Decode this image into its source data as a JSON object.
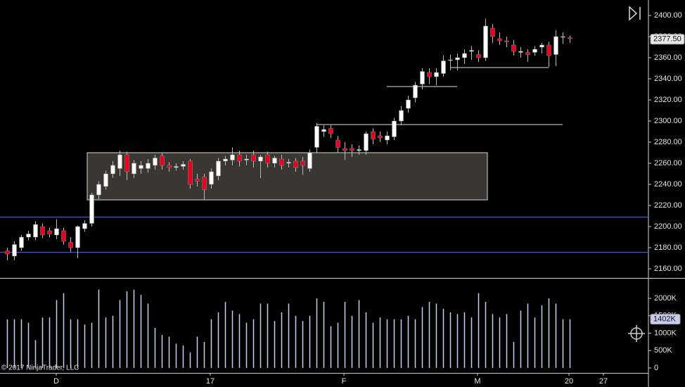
{
  "chart_data": [
    {
      "type": "candlestick",
      "xlim": [
        -1,
        91.2
      ],
      "ylim": [
        2151.33,
        2414.67
      ],
      "yticks": [
        {
          "value": 2160,
          "label": "2160.00"
        },
        {
          "value": 2180,
          "label": "2180.00"
        },
        {
          "value": 2200,
          "label": "2200.00"
        },
        {
          "value": 2220,
          "label": "2220.00"
        },
        {
          "value": 2240,
          "label": "2240.00"
        },
        {
          "value": 2260,
          "label": "2260.00"
        },
        {
          "value": 2280,
          "label": "2280.00"
        },
        {
          "value": 2300,
          "label": "2300.00"
        },
        {
          "value": 2320,
          "label": "2320.00"
        },
        {
          "value": 2340,
          "label": "2340.00"
        },
        {
          "value": 2360,
          "label": "2360.00"
        },
        {
          "value": 2380,
          "label": "2380.00"
        },
        {
          "value": 2400,
          "label": "2400.00"
        }
      ],
      "up_color": "#ffffff",
      "down_color": "#e8001c",
      "open": [
        2177,
        2172,
        2180,
        2190,
        2190,
        2200,
        2196,
        2192,
        2196,
        2185,
        2180,
        2198,
        2203,
        2230,
        2238,
        2250,
        2255,
        2268,
        2250,
        2255,
        2255,
        2258,
        2267,
        2258,
        2256,
        2257,
        2262,
        2245,
        2247,
        2240,
        2248,
        2262,
        2263,
        2268,
        2263,
        2268,
        2262,
        2268,
        2260,
        2264,
        2260,
        2262,
        2262,
        2255,
        2275,
        2290,
        2293,
        2282,
        2274,
        2274,
        2272,
        2272,
        2290,
        2286,
        2282,
        2285,
        2300,
        2312,
        2322,
        2335,
        2346,
        2342,
        2345,
        2358,
        2358,
        2360,
        2366,
        2363,
        2360,
        2388,
        2378,
        2376,
        2372,
        2365,
        2365,
        2365,
        2370,
        2372,
        2363,
        2380,
        2379
      ],
      "high": [
        2180,
        2186,
        2192,
        2196,
        2205,
        2203,
        2199,
        2207,
        2199,
        2190,
        2201,
        2206,
        2232,
        2243,
        2253,
        2262,
        2272,
        2271,
        2263,
        2262,
        2264,
        2268,
        2270,
        2261,
        2260,
        2262,
        2264,
        2250,
        2250,
        2255,
        2265,
        2267,
        2275,
        2272,
        2268,
        2272,
        2268,
        2271,
        2267,
        2268,
        2264,
        2265,
        2266,
        2273,
        2298,
        2296,
        2296,
        2286,
        2280,
        2278,
        2277,
        2290,
        2293,
        2290,
        2290,
        2303,
        2314,
        2324,
        2337,
        2350,
        2350,
        2350,
        2362,
        2363,
        2364,
        2368,
        2371,
        2367,
        2397,
        2392,
        2384,
        2380,
        2377,
        2370,
        2368,
        2371,
        2374,
        2375,
        2386,
        2384,
        2381
      ],
      "low": [
        2168,
        2168,
        2177,
        2187,
        2187,
        2189,
        2190,
        2188,
        2183,
        2176,
        2170,
        2195,
        2200,
        2226,
        2235,
        2246,
        2248,
        2244,
        2246,
        2250,
        2251,
        2254,
        2254,
        2252,
        2253,
        2254,
        2236,
        2238,
        2225,
        2236,
        2244,
        2258,
        2258,
        2257,
        2258,
        2256,
        2246,
        2256,
        2256,
        2254,
        2256,
        2252,
        2249,
        2252,
        2270,
        2285,
        2284,
        2270,
        2263,
        2266,
        2268,
        2268,
        2278,
        2280,
        2278,
        2282,
        2296,
        2308,
        2318,
        2330,
        2335,
        2334,
        2342,
        2348,
        2348,
        2354,
        2358,
        2356,
        2357,
        2374,
        2372,
        2370,
        2362,
        2360,
        2356,
        2362,
        2364,
        2351,
        2352,
        2373,
        2374
      ],
      "close": [
        2174,
        2183,
        2190,
        2193,
        2202,
        2192,
        2193,
        2198,
        2186,
        2180,
        2200,
        2203,
        2230,
        2240,
        2250,
        2258,
        2268,
        2252,
        2260,
        2258,
        2260,
        2265,
        2258,
        2256,
        2257,
        2259,
        2240,
        2243,
        2235,
        2252,
        2262,
        2264,
        2268,
        2262,
        2264,
        2262,
        2266,
        2260,
        2265,
        2258,
        2261,
        2256,
        2258,
        2270,
        2295,
        2292,
        2288,
        2275,
        2272,
        2272,
        2273,
        2288,
        2283,
        2284,
        2286,
        2300,
        2310,
        2320,
        2334,
        2347,
        2342,
        2346,
        2357,
        2358,
        2360,
        2364,
        2367,
        2360,
        2390,
        2380,
        2376,
        2375,
        2366,
        2366,
        2363,
        2368,
        2372,
        2362,
        2380,
        2380,
        2378
      ],
      "hlines": [
        {
          "value": 2209.3,
          "color": "#4a5aff"
        },
        {
          "value": 2176,
          "color": "#4a5aff"
        }
      ],
      "segments": [
        {
          "value": 2297,
          "x": [
            44,
            79
          ]
        },
        {
          "value": 2333,
          "x": [
            54,
            64
          ]
        },
        {
          "value": 2351,
          "x": [
            63,
            77
          ]
        }
      ],
      "box": {
        "y": [
          2225.3,
          2270
        ],
        "x": [
          11.4,
          68.3
        ]
      },
      "last_price": {
        "value": 2377.5,
        "label": "2377.50"
      }
    },
    {
      "type": "volume",
      "xlim": [
        -1,
        91.2
      ],
      "ylim": [
        -141400,
        2545500
      ],
      "color": "#c8cdf0",
      "yticks": [
        {
          "value": 0,
          "label": "0"
        },
        {
          "value": 500000,
          "label": "500K"
        },
        {
          "value": 1000000,
          "label": "1000K"
        },
        {
          "value": 1500000,
          "label": "1500K"
        },
        {
          "value": 2000000,
          "label": "2000K"
        }
      ],
      "xticks": [
        {
          "value": 7,
          "label": "D"
        },
        {
          "value": 28.9,
          "label": "17"
        },
        {
          "value": 47.9,
          "label": "F"
        },
        {
          "value": 66.9,
          "label": "M"
        },
        {
          "value": 79.9,
          "label": "20"
        },
        {
          "value": 84.8,
          "label": "27"
        }
      ],
      "values": [
        1400000,
        1400000,
        1400000,
        1300000,
        800000,
        1450000,
        1450000,
        1950000,
        2150000,
        1400000,
        1400000,
        1250000,
        1300000,
        2250000,
        1450000,
        1500000,
        1950000,
        2200000,
        2250000,
        2100000,
        1850000,
        1150000,
        950000,
        900000,
        700000,
        650000,
        450000,
        900000,
        750000,
        1400000,
        1600000,
        1900000,
        1650000,
        1550000,
        1300000,
        1400000,
        1850000,
        1850000,
        1350000,
        1600000,
        1850000,
        1500000,
        1350000,
        1500000,
        2000000,
        1900000,
        1200000,
        1300000,
        1900000,
        1500000,
        1950000,
        1600000,
        1300000,
        1450000,
        1400000,
        1400000,
        1400000,
        1500000,
        1400000,
        1750000,
        1900000,
        1850000,
        1700000,
        1600000,
        1550000,
        1600000,
        1450000,
        2150000,
        1900000,
        1550000,
        1450000,
        1550000,
        750000,
        1650000,
        1850000,
        1450000,
        1800000,
        2000000,
        1850000,
        1400000,
        1402000
      ],
      "last_value": {
        "value": 1402000,
        "label": "1402K"
      }
    }
  ],
  "footer": "© 2017 NinjaTrader, LLC"
}
